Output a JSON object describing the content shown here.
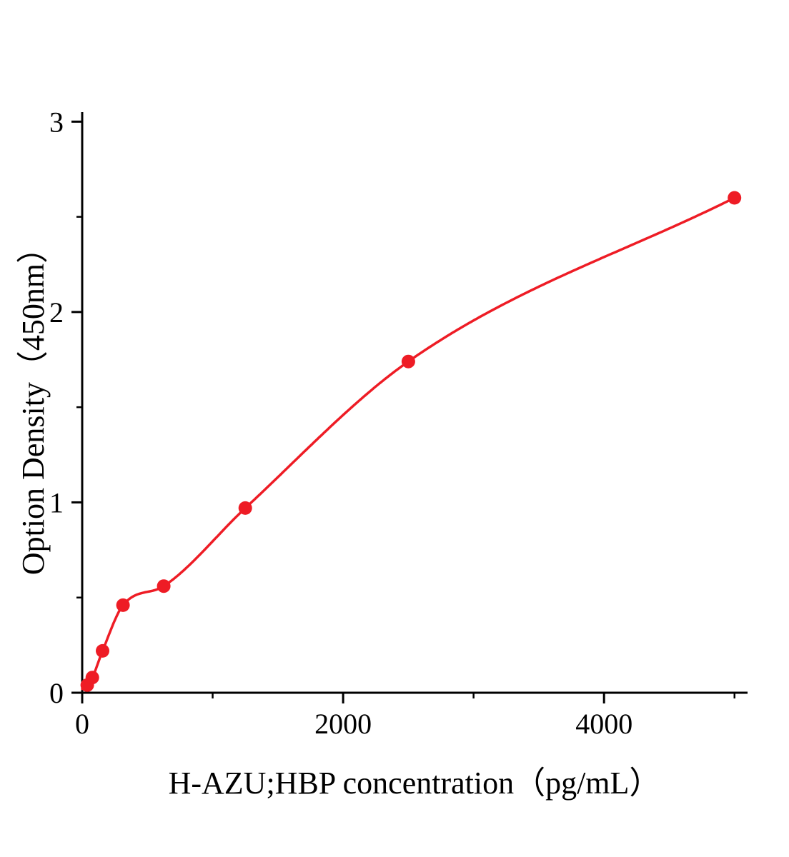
{
  "figure": {
    "background": "#ffffff"
  },
  "chart_data": {
    "type": "scatter",
    "title": "",
    "xlabel": "H-AZU;HBP concentration（pg/mL）",
    "ylabel": "Option Density（450nm）",
    "x": [
      39,
      78,
      156,
      313,
      625,
      1250,
      2500,
      5000
    ],
    "y": [
      0.04,
      0.08,
      0.22,
      0.46,
      0.56,
      0.97,
      1.74,
      2.6
    ],
    "fit_line": true,
    "xlim": [
      0,
      5100
    ],
    "ylim": [
      0,
      3.05
    ],
    "x_ticks": [
      0,
      2000,
      4000
    ],
    "y_ticks": [
      0,
      1,
      2,
      3
    ],
    "x_minor_ticks": [
      1000,
      3000,
      5000
    ],
    "y_minor_ticks": [
      0.5,
      1.5,
      2.5
    ],
    "grid": false,
    "legend": false,
    "colors": {
      "curve": "#ee1c25",
      "marker": "#ee1c25",
      "axis": "#000000"
    }
  }
}
